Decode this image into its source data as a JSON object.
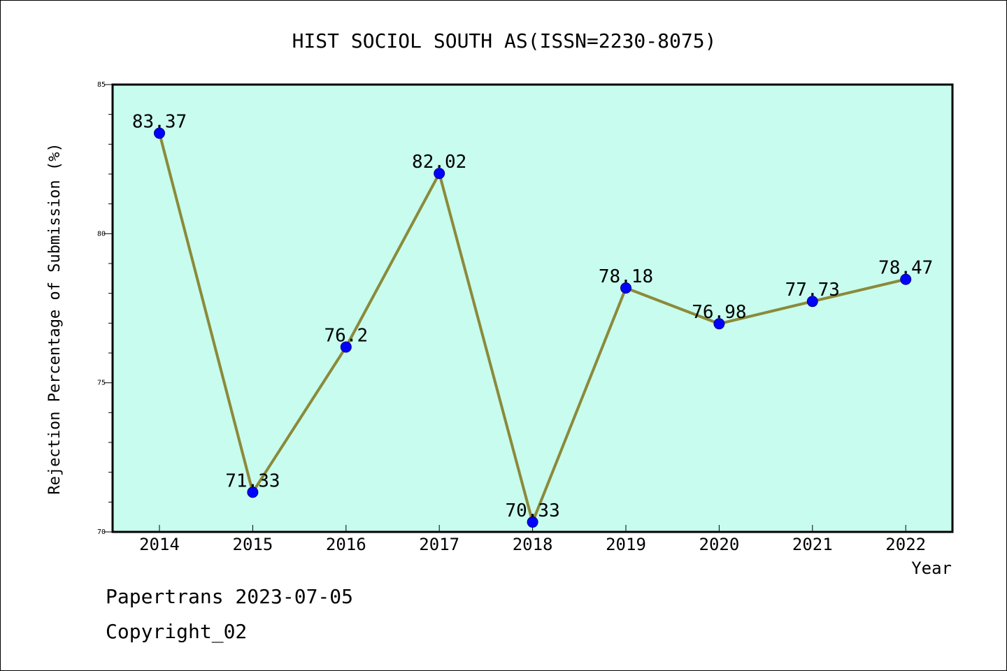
{
  "chart_data": {
    "type": "line",
    "title": "HIST SOCIOL SOUTH AS(ISSN=2230-8075)",
    "xlabel": "Year",
    "ylabel": "Rejection Percentage of Submission (%)",
    "categories": [
      "2014",
      "2015",
      "2016",
      "2017",
      "2018",
      "2019",
      "2020",
      "2021",
      "2022"
    ],
    "series": [
      {
        "values": [
          83.37,
          71.33,
          76.2,
          82.02,
          70.33,
          78.18,
          76.98,
          77.73,
          78.47
        ],
        "labels": [
          "83.37",
          "71.33",
          "76.2",
          "82.02",
          "70.33",
          "78.18",
          "76.98",
          "77.73",
          "78.47"
        ]
      }
    ],
    "ylim": [
      70,
      85
    ],
    "yticks": [
      "70",
      "75",
      "80",
      "85"
    ],
    "grid": false,
    "legend": "none",
    "colors": {
      "plot_background": "#c8fcee",
      "line": "#8b8a3a",
      "marker": "#0000ff",
      "axis": "#000000"
    }
  },
  "footer": {
    "line1": "Papertrans 2023-07-05",
    "line2": "Copyright_02"
  }
}
